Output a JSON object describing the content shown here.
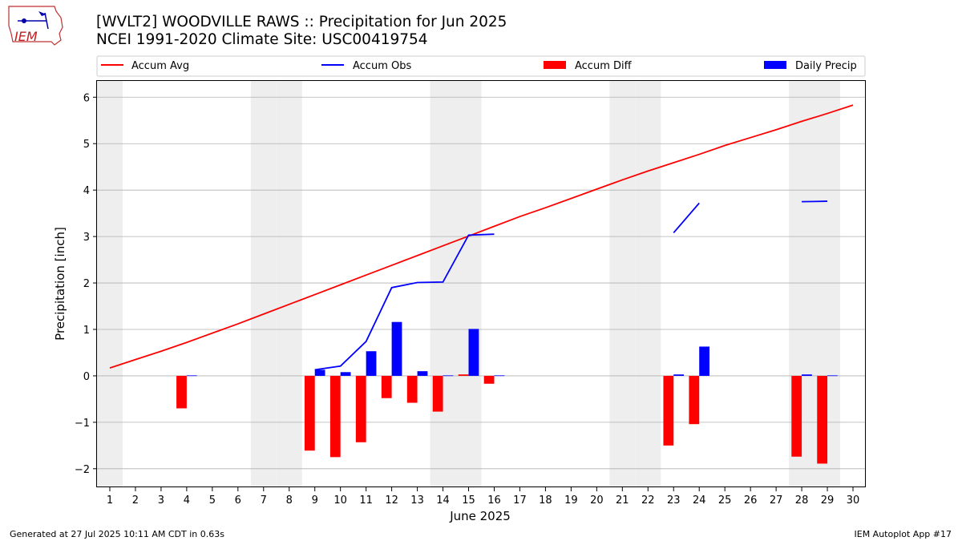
{
  "header": {
    "logo_text": "IEM",
    "title_line1": "[WVLT2] WOODVILLE RAWS :: Precipitation for Jun 2025",
    "title_line2": "NCEI 1991-2020 Climate Site: USC00419754"
  },
  "footer": {
    "generated": "Generated at 27 Jul 2025 10:11 AM CDT in 0.63s",
    "app": "IEM Autoplot App #17"
  },
  "colors": {
    "accum_avg": "#ff0000",
    "accum_obs": "#0000ff",
    "accum_diff": "#ff0000",
    "daily_precip": "#0000ff",
    "weekend_shade": "#eeeeee",
    "grid": "#b0b0b0"
  },
  "chart_data": {
    "type": "bar",
    "xlabel": "June 2025",
    "ylabel": "Precipitation [inch]",
    "xlim": [
      0.5,
      30.5
    ],
    "ylim": [
      -2.4,
      6.35
    ],
    "yticks": [
      -2,
      -1,
      0,
      1,
      2,
      3,
      4,
      5,
      6
    ],
    "xticks": [
      1,
      2,
      3,
      4,
      5,
      6,
      7,
      8,
      9,
      10,
      11,
      12,
      13,
      14,
      15,
      16,
      17,
      18,
      19,
      20,
      21,
      22,
      23,
      24,
      25,
      26,
      27,
      28,
      29,
      30
    ],
    "grid": "horizontal",
    "legend_placement": "top",
    "legend": [
      "Accum Avg",
      "Accum Obs",
      "Accum Diff",
      "Daily Precip"
    ],
    "weekend_days": [
      1,
      7,
      8,
      14,
      15,
      21,
      22,
      28,
      29
    ],
    "accum_avg": {
      "name": "Accum Avg",
      "x": [
        1,
        2,
        3,
        4,
        5,
        6,
        7,
        8,
        9,
        10,
        11,
        12,
        13,
        14,
        15,
        16,
        17,
        18,
        19,
        20,
        21,
        22,
        23,
        24,
        25,
        26,
        27,
        28,
        29,
        30
      ],
      "values": [
        0.17,
        0.35,
        0.53,
        0.72,
        0.92,
        1.12,
        1.33,
        1.54,
        1.75,
        1.96,
        2.17,
        2.38,
        2.59,
        2.8,
        3.01,
        3.22,
        3.43,
        3.62,
        3.82,
        4.02,
        4.22,
        4.41,
        4.59,
        4.77,
        4.96,
        5.13,
        5.3,
        5.48,
        5.65,
        5.83
      ]
    },
    "accum_obs": {
      "name": "Accum Obs",
      "segments": [
        {
          "x": [
            9,
            10,
            11,
            12,
            13,
            14,
            15,
            16
          ],
          "values": [
            0.13,
            0.21,
            0.74,
            1.9,
            2.01,
            2.02,
            3.03,
            3.05
          ]
        },
        {
          "x": [
            23,
            24
          ],
          "values": [
            3.08,
            3.72
          ]
        },
        {
          "x": [
            28,
            29
          ],
          "values": [
            3.75,
            3.76
          ]
        }
      ]
    },
    "accum_diff": {
      "name": "Accum Diff",
      "x": [
        4,
        9,
        10,
        11,
        12,
        13,
        14,
        15,
        16,
        23,
        24,
        28,
        29
      ],
      "values": [
        -0.7,
        -1.61,
        -1.75,
        -1.43,
        -0.48,
        -0.58,
        -0.77,
        0.03,
        -0.17,
        -1.5,
        -1.04,
        -1.74,
        -1.89
      ]
    },
    "daily_precip": {
      "name": "Daily Precip",
      "x": [
        4,
        9,
        10,
        11,
        12,
        13,
        14,
        15,
        16,
        23,
        24,
        28,
        29
      ],
      "values": [
        0.01,
        0.13,
        0.08,
        0.53,
        1.16,
        0.1,
        0.01,
        1.01,
        0.01,
        0.03,
        0.63,
        0.03,
        0.01
      ]
    }
  }
}
